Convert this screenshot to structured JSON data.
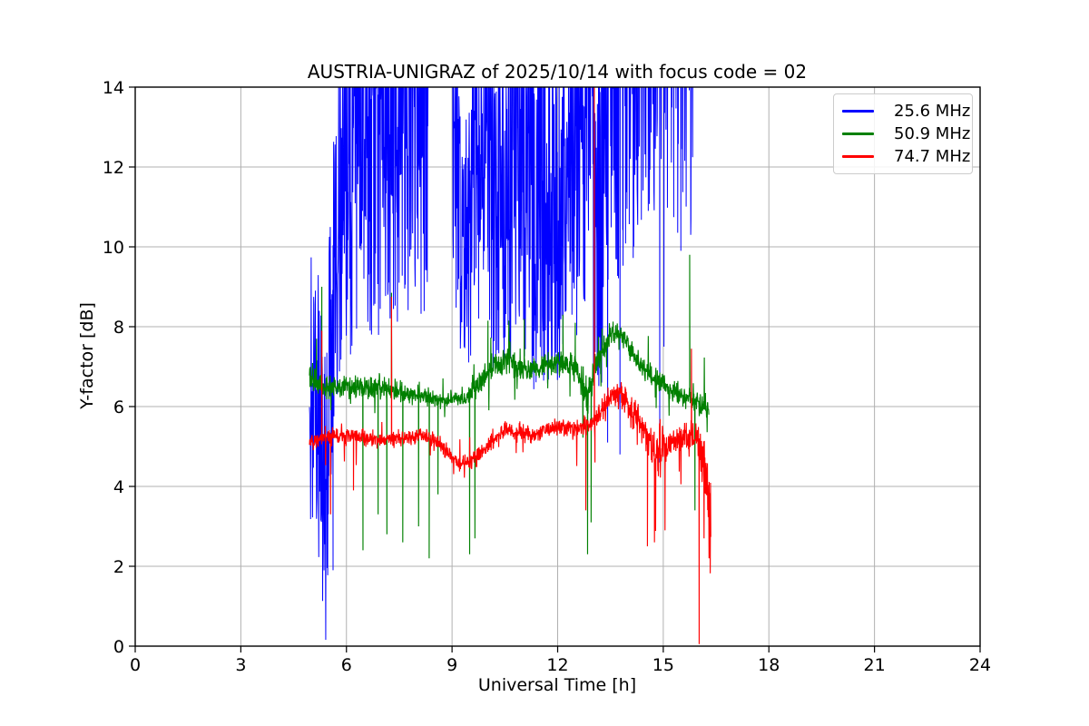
{
  "title": "AUSTRIA-UNIGRAZ of 2025/10/14 with focus code = 02",
  "xlabel": "Universal Time [h]",
  "ylabel": "Y-factor [dB]",
  "legend": {
    "items": [
      {
        "label": "25.6 MHz",
        "color": "#0000ff"
      },
      {
        "label": "50.9 MHz",
        "color": "#008000"
      },
      {
        "label": "74.7 MHz",
        "color": "#ff0000"
      }
    ]
  },
  "colors": {
    "grid": "#b0b0b0",
    "axes": "#000000",
    "background": "#ffffff"
  },
  "chart_data": {
    "type": "line",
    "title": "AUSTRIA-UNIGRAZ of 2025/10/14 with focus code = 02",
    "xlabel": "Universal Time [h]",
    "ylabel": "Y-factor [dB]",
    "xlim": [
      0,
      24
    ],
    "ylim": [
      0,
      14
    ],
    "xticks": [
      0,
      3,
      6,
      9,
      12,
      15,
      18,
      21,
      24
    ],
    "yticks": [
      0,
      2,
      4,
      6,
      8,
      10,
      12,
      14
    ],
    "grid": true,
    "legend_position": "upper right",
    "sample_step": 0.008,
    "seed": 11,
    "series": [
      {
        "name": "25.6 MHz",
        "color": "#0000ff",
        "style": "band_segments",
        "note_values_above_ylim_are_clipped": true,
        "segments": [
          [
            4.95,
            5.3,
            2.0,
            2.1,
            10.8,
            9.5,
            0.9
          ],
          [
            5.3,
            5.5,
            0.05,
            0.05,
            7.5,
            8.0,
            0.9
          ],
          [
            5.5,
            5.78,
            3.0,
            6.5,
            11.0,
            14.5,
            1.0
          ],
          [
            5.78,
            6.2,
            6.8,
            7.4,
            15.0,
            15.8,
            1.25
          ],
          [
            6.2,
            8.35,
            7.6,
            7.9,
            16.3,
            16.3,
            1.6
          ],
          [
            8.35,
            9.02,
            14.3,
            14.3,
            17.0,
            17.0,
            1.0
          ],
          [
            9.02,
            9.28,
            9.0,
            6.6,
            16.5,
            12.5,
            1.1
          ],
          [
            9.28,
            9.58,
            6.5,
            7.2,
            12.5,
            14.5,
            1.0
          ],
          [
            9.58,
            10.12,
            7.5,
            7.7,
            15.5,
            15.5,
            1.35
          ],
          [
            10.12,
            10.68,
            6.9,
            7.2,
            15.0,
            15.2,
            1.2
          ],
          [
            10.68,
            11.05,
            8.0,
            8.0,
            16.0,
            16.0,
            1.5
          ],
          [
            11.05,
            12.15,
            6.3,
            6.6,
            15.6,
            15.6,
            1.05
          ],
          [
            12.15,
            12.78,
            7.4,
            8.0,
            16.0,
            16.2,
            1.3
          ],
          [
            12.78,
            12.97,
            9.5,
            10.0,
            16.5,
            16.5,
            1.6
          ],
          [
            12.97,
            13.28,
            6.1,
            6.5,
            15.5,
            15.8,
            1.05
          ],
          [
            13.28,
            13.85,
            8.3,
            9.0,
            17.0,
            17.5,
            2.0
          ],
          [
            13.85,
            14.55,
            9.3,
            9.8,
            18.0,
            18.5,
            2.5
          ],
          [
            14.55,
            15.25,
            9.8,
            10.2,
            19.0,
            19.5,
            2.9
          ],
          [
            15.25,
            15.85,
            10.2,
            10.5,
            20.0,
            20.5,
            3.3
          ]
        ],
        "spikes_down": [
          [
            5.62,
            1.9
          ],
          [
            13.42,
            5.1
          ],
          [
            13.77,
            4.8
          ],
          [
            14.9,
            4.6
          ],
          [
            15.02,
            7.5
          ],
          [
            15.5,
            9.9
          ],
          [
            15.78,
            10.3
          ]
        ],
        "spikes_up": []
      },
      {
        "name": "50.9 MHz",
        "color": "#008000",
        "style": "noisy_line",
        "t_range": [
          4.95,
          16.3
        ],
        "mean_points": [
          [
            4.95,
            6.7
          ],
          [
            5.3,
            6.5
          ],
          [
            6.0,
            6.5
          ],
          [
            7.0,
            6.45
          ],
          [
            8.0,
            6.3
          ],
          [
            8.7,
            6.15
          ],
          [
            9.35,
            6.2
          ],
          [
            9.8,
            6.6
          ],
          [
            10.3,
            7.1
          ],
          [
            10.7,
            7.15
          ],
          [
            11.1,
            6.85
          ],
          [
            11.6,
            7.0
          ],
          [
            12.1,
            7.1
          ],
          [
            12.55,
            6.95
          ],
          [
            12.85,
            6.2
          ],
          [
            13.1,
            7.1
          ],
          [
            13.5,
            7.85
          ],
          [
            13.9,
            7.7
          ],
          [
            14.3,
            7.1
          ],
          [
            14.8,
            6.7
          ],
          [
            15.3,
            6.35
          ],
          [
            15.8,
            6.2
          ],
          [
            16.3,
            6.0
          ]
        ],
        "amp_points": [
          [
            4.95,
            0.5
          ],
          [
            6.0,
            0.4
          ],
          [
            7.0,
            0.45
          ],
          [
            8.6,
            0.28
          ],
          [
            9.35,
            0.25
          ],
          [
            9.9,
            0.5
          ],
          [
            10.6,
            0.5
          ],
          [
            11.3,
            0.4
          ],
          [
            12.1,
            0.45
          ],
          [
            12.9,
            0.7
          ],
          [
            13.6,
            0.4
          ],
          [
            14.3,
            0.45
          ],
          [
            15.1,
            0.4
          ],
          [
            15.9,
            0.45
          ],
          [
            16.3,
            0.55
          ]
        ],
        "spikes_up": [
          [
            5.15,
            7.7
          ],
          [
            5.3,
            9.0
          ],
          [
            7.28,
            8.85
          ],
          [
            10.02,
            8.15
          ],
          [
            11.05,
            8.2
          ],
          [
            12.15,
            8.3
          ],
          [
            12.5,
            8.1
          ],
          [
            15.75,
            9.8
          ]
        ],
        "spikes_down": [
          [
            6.47,
            2.4
          ],
          [
            6.9,
            3.3
          ],
          [
            7.15,
            2.8
          ],
          [
            7.6,
            2.6
          ],
          [
            8.05,
            3.0
          ],
          [
            8.35,
            2.2
          ],
          [
            8.6,
            3.8
          ],
          [
            9.5,
            2.3
          ],
          [
            9.65,
            2.7
          ],
          [
            12.85,
            2.3
          ],
          [
            12.95,
            3.1
          ],
          [
            15.9,
            3.4
          ]
        ]
      },
      {
        "name": "74.7 MHz",
        "color": "#ff0000",
        "style": "noisy_line",
        "t_range": [
          4.95,
          16.35
        ],
        "mean_points": [
          [
            4.95,
            5.1
          ],
          [
            5.5,
            5.25
          ],
          [
            6.0,
            5.3
          ],
          [
            6.5,
            5.2
          ],
          [
            7.0,
            5.15
          ],
          [
            7.6,
            5.2
          ],
          [
            8.1,
            5.3
          ],
          [
            8.6,
            5.1
          ],
          [
            9.2,
            4.55
          ],
          [
            9.6,
            4.65
          ],
          [
            10.0,
            5.0
          ],
          [
            10.5,
            5.45
          ],
          [
            10.9,
            5.35
          ],
          [
            11.3,
            5.3
          ],
          [
            11.7,
            5.45
          ],
          [
            12.2,
            5.5
          ],
          [
            12.6,
            5.45
          ],
          [
            13.0,
            5.6
          ],
          [
            13.4,
            6.1
          ],
          [
            13.7,
            6.3
          ],
          [
            14.0,
            6.05
          ],
          [
            14.4,
            5.5
          ],
          [
            14.8,
            4.8
          ],
          [
            15.2,
            5.1
          ],
          [
            15.6,
            5.25
          ],
          [
            15.95,
            5.2
          ],
          [
            16.15,
            4.5
          ],
          [
            16.35,
            3.4
          ]
        ],
        "amp_points": [
          [
            4.95,
            0.35
          ],
          [
            6.0,
            0.3
          ],
          [
            7.5,
            0.3
          ],
          [
            9.0,
            0.32
          ],
          [
            10.0,
            0.3
          ],
          [
            11.0,
            0.28
          ],
          [
            12.0,
            0.3
          ],
          [
            13.0,
            0.35
          ],
          [
            13.6,
            0.5
          ],
          [
            14.2,
            0.6
          ],
          [
            14.8,
            0.85
          ],
          [
            15.3,
            0.5
          ],
          [
            15.9,
            0.55
          ],
          [
            16.15,
            0.9
          ],
          [
            16.35,
            1.0
          ]
        ],
        "spikes_up": [
          [
            5.3,
            7.9
          ],
          [
            7.28,
            8.75
          ],
          [
            13.04,
            14.3
          ],
          [
            15.8,
            7.45
          ]
        ],
        "spikes_down": [
          [
            5.55,
            3.3
          ],
          [
            6.2,
            3.9
          ],
          [
            12.8,
            3.4
          ],
          [
            13.06,
            4.6
          ],
          [
            14.55,
            2.5
          ],
          [
            14.75,
            2.6
          ],
          [
            15.05,
            2.9
          ],
          [
            16.02,
            0.05
          ],
          [
            16.3,
            2.2
          ]
        ]
      }
    ]
  }
}
